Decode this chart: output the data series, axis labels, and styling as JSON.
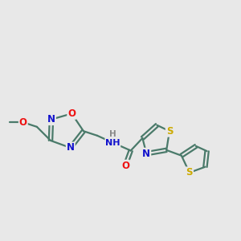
{
  "bg_color": "#e8e8e8",
  "bond_color": "#4a7a6a",
  "bond_width": 1.6,
  "atom_colors": {
    "O": "#ee1111",
    "N": "#1111cc",
    "S": "#ccaa00",
    "H": "#888888"
  },
  "font_size": 8.5,
  "figsize": [
    3.0,
    3.0
  ],
  "dpi": 100
}
